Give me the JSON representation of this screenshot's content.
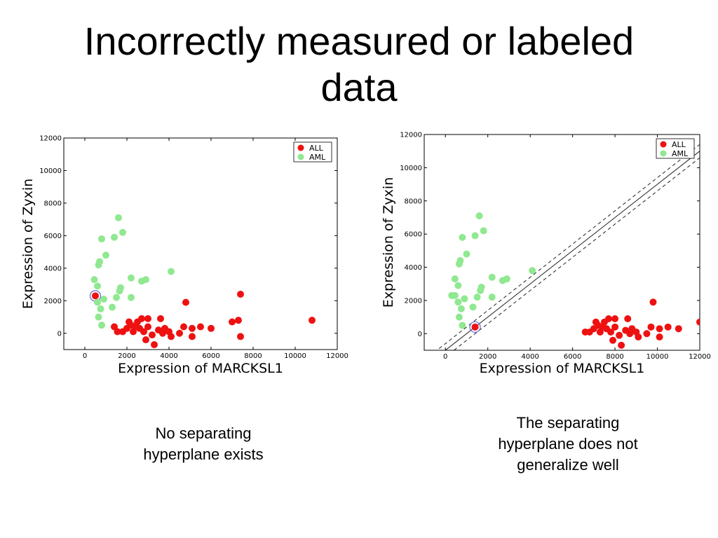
{
  "slide": {
    "title": "Incorrectly measured or labeled\ndata"
  },
  "captions": {
    "left": "No separating\nhyperplane exists",
    "right": "The separating\nhyperplane does not\ngeneralize well"
  },
  "colors": {
    "ALL": "#ee1111",
    "AML": "#90e890",
    "highlight_ring": "#6666cc"
  },
  "chart_data": [
    {
      "type": "scatter",
      "xlabel": "Expression of MARCKSL1",
      "ylabel": "Expression of Zyxin",
      "xlim": [
        -1000,
        12000
      ],
      "ylim": [
        -1000,
        12000
      ],
      "xticks": [
        0,
        2000,
        4000,
        6000,
        8000,
        10000,
        12000
      ],
      "yticks": [
        0,
        2000,
        4000,
        6000,
        8000,
        10000,
        12000
      ],
      "legend_position": "top-right",
      "series": [
        {
          "name": "ALL",
          "color": "#ee1111",
          "points": [
            [
              500,
              2300
            ],
            [
              1400,
              400
            ],
            [
              1550,
              100
            ],
            [
              1800,
              100
            ],
            [
              2000,
              300
            ],
            [
              2100,
              700
            ],
            [
              2200,
              500
            ],
            [
              2300,
              100
            ],
            [
              2400,
              400
            ],
            [
              2500,
              700
            ],
            [
              2600,
              300
            ],
            [
              2700,
              900
            ],
            [
              2800,
              100
            ],
            [
              2900,
              -400
            ],
            [
              3000,
              400
            ],
            [
              3000,
              900
            ],
            [
              3200,
              -100
            ],
            [
              3300,
              -700
            ],
            [
              3500,
              200
            ],
            [
              3600,
              900
            ],
            [
              3700,
              0
            ],
            [
              3800,
              300
            ],
            [
              4000,
              100
            ],
            [
              4100,
              -200
            ],
            [
              4500,
              0
            ],
            [
              4700,
              400
            ],
            [
              4800,
              1900
            ],
            [
              5100,
              -200
            ],
            [
              5100,
              300
            ],
            [
              5500,
              400
            ],
            [
              6000,
              300
            ],
            [
              7000,
              700
            ],
            [
              7300,
              800
            ],
            [
              7400,
              2400
            ],
            [
              7400,
              -200
            ],
            [
              10800,
              800
            ]
          ]
        },
        {
          "name": "AML",
          "color": "#90e890",
          "points": [
            [
              450,
              3300
            ],
            [
              600,
              2900
            ],
            [
              600,
              1900
            ],
            [
              650,
              1000
            ],
            [
              650,
              4200
            ],
            [
              700,
              4400
            ],
            [
              750,
              1500
            ],
            [
              800,
              500
            ],
            [
              800,
              5800
            ],
            [
              900,
              2100
            ],
            [
              1000,
              4800
            ],
            [
              1300,
              1600
            ],
            [
              1400,
              5900
            ],
            [
              1500,
              2200
            ],
            [
              1600,
              7100
            ],
            [
              1650,
              2600
            ],
            [
              1700,
              2800
            ],
            [
              1800,
              6200
            ],
            [
              2200,
              3400
            ],
            [
              2200,
              2200
            ],
            [
              2700,
              3200
            ],
            [
              2900,
              3300
            ],
            [
              4100,
              3800
            ]
          ]
        }
      ],
      "highlight": {
        "x": 500,
        "y": 2300
      }
    },
    {
      "type": "scatter",
      "xlabel": "Expression of MARCKSL1",
      "ylabel": "Expression of Zyxin",
      "xlim": [
        -1000,
        12000
      ],
      "ylim": [
        -1000,
        12000
      ],
      "xticks": [
        0,
        2000,
        4000,
        6000,
        8000,
        10000,
        12000
      ],
      "yticks": [
        0,
        2000,
        4000,
        6000,
        8000,
        10000,
        12000
      ],
      "legend_position": "top-right",
      "series": [
        {
          "name": "ALL",
          "color": "#ee1111",
          "points": [
            [
              1400,
              400
            ],
            [
              6600,
              100
            ],
            [
              6800,
              100
            ],
            [
              7000,
              300
            ],
            [
              7100,
              700
            ],
            [
              7200,
              500
            ],
            [
              7300,
              100
            ],
            [
              7400,
              400
            ],
            [
              7500,
              700
            ],
            [
              7600,
              300
            ],
            [
              7700,
              900
            ],
            [
              7800,
              100
            ],
            [
              7900,
              -400
            ],
            [
              8000,
              400
            ],
            [
              8000,
              900
            ],
            [
              8200,
              -100
            ],
            [
              8300,
              -700
            ],
            [
              8500,
              200
            ],
            [
              8600,
              900
            ],
            [
              8700,
              0
            ],
            [
              8800,
              300
            ],
            [
              9000,
              100
            ],
            [
              9100,
              -200
            ],
            [
              9500,
              0
            ],
            [
              9700,
              400
            ],
            [
              9800,
              1900
            ],
            [
              10100,
              -200
            ],
            [
              10100,
              300
            ],
            [
              10500,
              400
            ],
            [
              11000,
              300
            ],
            [
              12000,
              700
            ]
          ]
        },
        {
          "name": "AML",
          "color": "#90e890",
          "points": [
            [
              450,
              3300
            ],
            [
              600,
              2900
            ],
            [
              600,
              1900
            ],
            [
              650,
              1000
            ],
            [
              650,
              4200
            ],
            [
              700,
              4400
            ],
            [
              750,
              1500
            ],
            [
              800,
              500
            ],
            [
              800,
              5800
            ],
            [
              900,
              2100
            ],
            [
              1000,
              4800
            ],
            [
              1300,
              1600
            ],
            [
              1400,
              5900
            ],
            [
              1500,
              2200
            ],
            [
              1600,
              7100
            ],
            [
              1650,
              2600
            ],
            [
              1700,
              2800
            ],
            [
              1800,
              6200
            ],
            [
              2200,
              3400
            ],
            [
              2200,
              2200
            ],
            [
              2700,
              3200
            ],
            [
              2900,
              3300
            ],
            [
              4100,
              3800
            ],
            [
              300,
              2300
            ],
            [
              450,
              2300
            ]
          ]
        }
      ],
      "highlight": {
        "x": 1400,
        "y": 400
      },
      "hyperplane": {
        "slope": 1.0,
        "intercept": -1000,
        "margin_offset": 400
      }
    }
  ]
}
